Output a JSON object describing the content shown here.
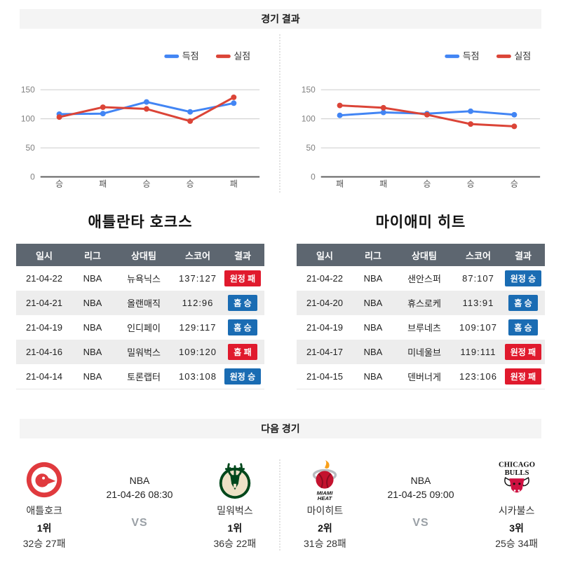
{
  "page": {
    "results_header": "경기 결과",
    "next_header": "다음 경기"
  },
  "colors": {
    "scored_line": "#4285f4",
    "conceded_line": "#db4437",
    "win_badge": "#1a6cb3",
    "loss_badge": "#e01a2d",
    "table_header_bg": "#5d6670"
  },
  "chart_data": [
    {
      "type": "line",
      "team": "애틀란타 호크스",
      "legend_position": "top-right",
      "categories": [
        "승",
        "패",
        "승",
        "승",
        "패"
      ],
      "series": [
        {
          "name": "득점",
          "color": "#4285f4",
          "values": [
            108,
            109,
            129,
            112,
            127
          ]
        },
        {
          "name": "실점",
          "color": "#db4437",
          "values": [
            103,
            120,
            117,
            96,
            137
          ]
        }
      ],
      "ylim": [
        0,
        150
      ],
      "yticks": [
        0,
        50,
        100,
        150
      ],
      "grid": true
    },
    {
      "type": "line",
      "team": "마이애미 히트",
      "legend_position": "top-right",
      "categories": [
        "패",
        "패",
        "승",
        "승",
        "승"
      ],
      "series": [
        {
          "name": "득점",
          "color": "#4285f4",
          "values": [
            106,
            111,
            109,
            113,
            107
          ]
        },
        {
          "name": "실점",
          "color": "#db4437",
          "values": [
            123,
            119,
            107,
            91,
            87
          ]
        }
      ],
      "ylim": [
        0,
        150
      ],
      "yticks": [
        0,
        50,
        100,
        150
      ],
      "grid": true
    }
  ],
  "tables": [
    {
      "team": "애틀란타 호크스",
      "columns": [
        "일시",
        "리그",
        "상대팀",
        "스코어",
        "결과"
      ],
      "rows": [
        {
          "date": "21-04-22",
          "league": "NBA",
          "opponent": "뉴욕닉스",
          "score": "137:127",
          "result": "원정 패",
          "result_type": "loss"
        },
        {
          "date": "21-04-21",
          "league": "NBA",
          "opponent": "올랜매직",
          "score": "112:96",
          "result": "홈 승",
          "result_type": "win"
        },
        {
          "date": "21-04-19",
          "league": "NBA",
          "opponent": "인디페이",
          "score": "129:117",
          "result": "홈 승",
          "result_type": "win"
        },
        {
          "date": "21-04-16",
          "league": "NBA",
          "opponent": "밀워벅스",
          "score": "109:120",
          "result": "홈 패",
          "result_type": "loss"
        },
        {
          "date": "21-04-14",
          "league": "NBA",
          "opponent": "토론랩터",
          "score": "103:108",
          "result": "원정 승",
          "result_type": "win"
        }
      ]
    },
    {
      "team": "마이애미 히트",
      "columns": [
        "일시",
        "리그",
        "상대팀",
        "스코어",
        "결과"
      ],
      "rows": [
        {
          "date": "21-04-22",
          "league": "NBA",
          "opponent": "샌안스퍼",
          "score": "87:107",
          "result": "원정 승",
          "result_type": "win"
        },
        {
          "date": "21-04-20",
          "league": "NBA",
          "opponent": "휴스로케",
          "score": "113:91",
          "result": "홈 승",
          "result_type": "win"
        },
        {
          "date": "21-04-19",
          "league": "NBA",
          "opponent": "브루네츠",
          "score": "109:107",
          "result": "홈 승",
          "result_type": "win"
        },
        {
          "date": "21-04-17",
          "league": "NBA",
          "opponent": "미네울브",
          "score": "119:111",
          "result": "원정 패",
          "result_type": "loss"
        },
        {
          "date": "21-04-15",
          "league": "NBA",
          "opponent": "덴버너게",
          "score": "123:106",
          "result": "원정 패",
          "result_type": "loss"
        }
      ]
    }
  ],
  "next_games": [
    {
      "league": "NBA",
      "datetime": "21-04-26 08:30",
      "vs_label": "VS",
      "home": {
        "name": "애틀호크",
        "rank": "1위",
        "record": "32승 27패",
        "logo": "hawks"
      },
      "away": {
        "name": "밀워벅스",
        "rank": "1위",
        "record": "36승 22패",
        "logo": "bucks"
      }
    },
    {
      "league": "NBA",
      "datetime": "21-04-25 09:00",
      "vs_label": "VS",
      "home": {
        "name": "마이히트",
        "rank": "2위",
        "record": "31승 28패",
        "logo": "heat"
      },
      "away": {
        "name": "시카불스",
        "rank": "3위",
        "record": "25승 34패",
        "logo": "bulls"
      }
    }
  ]
}
